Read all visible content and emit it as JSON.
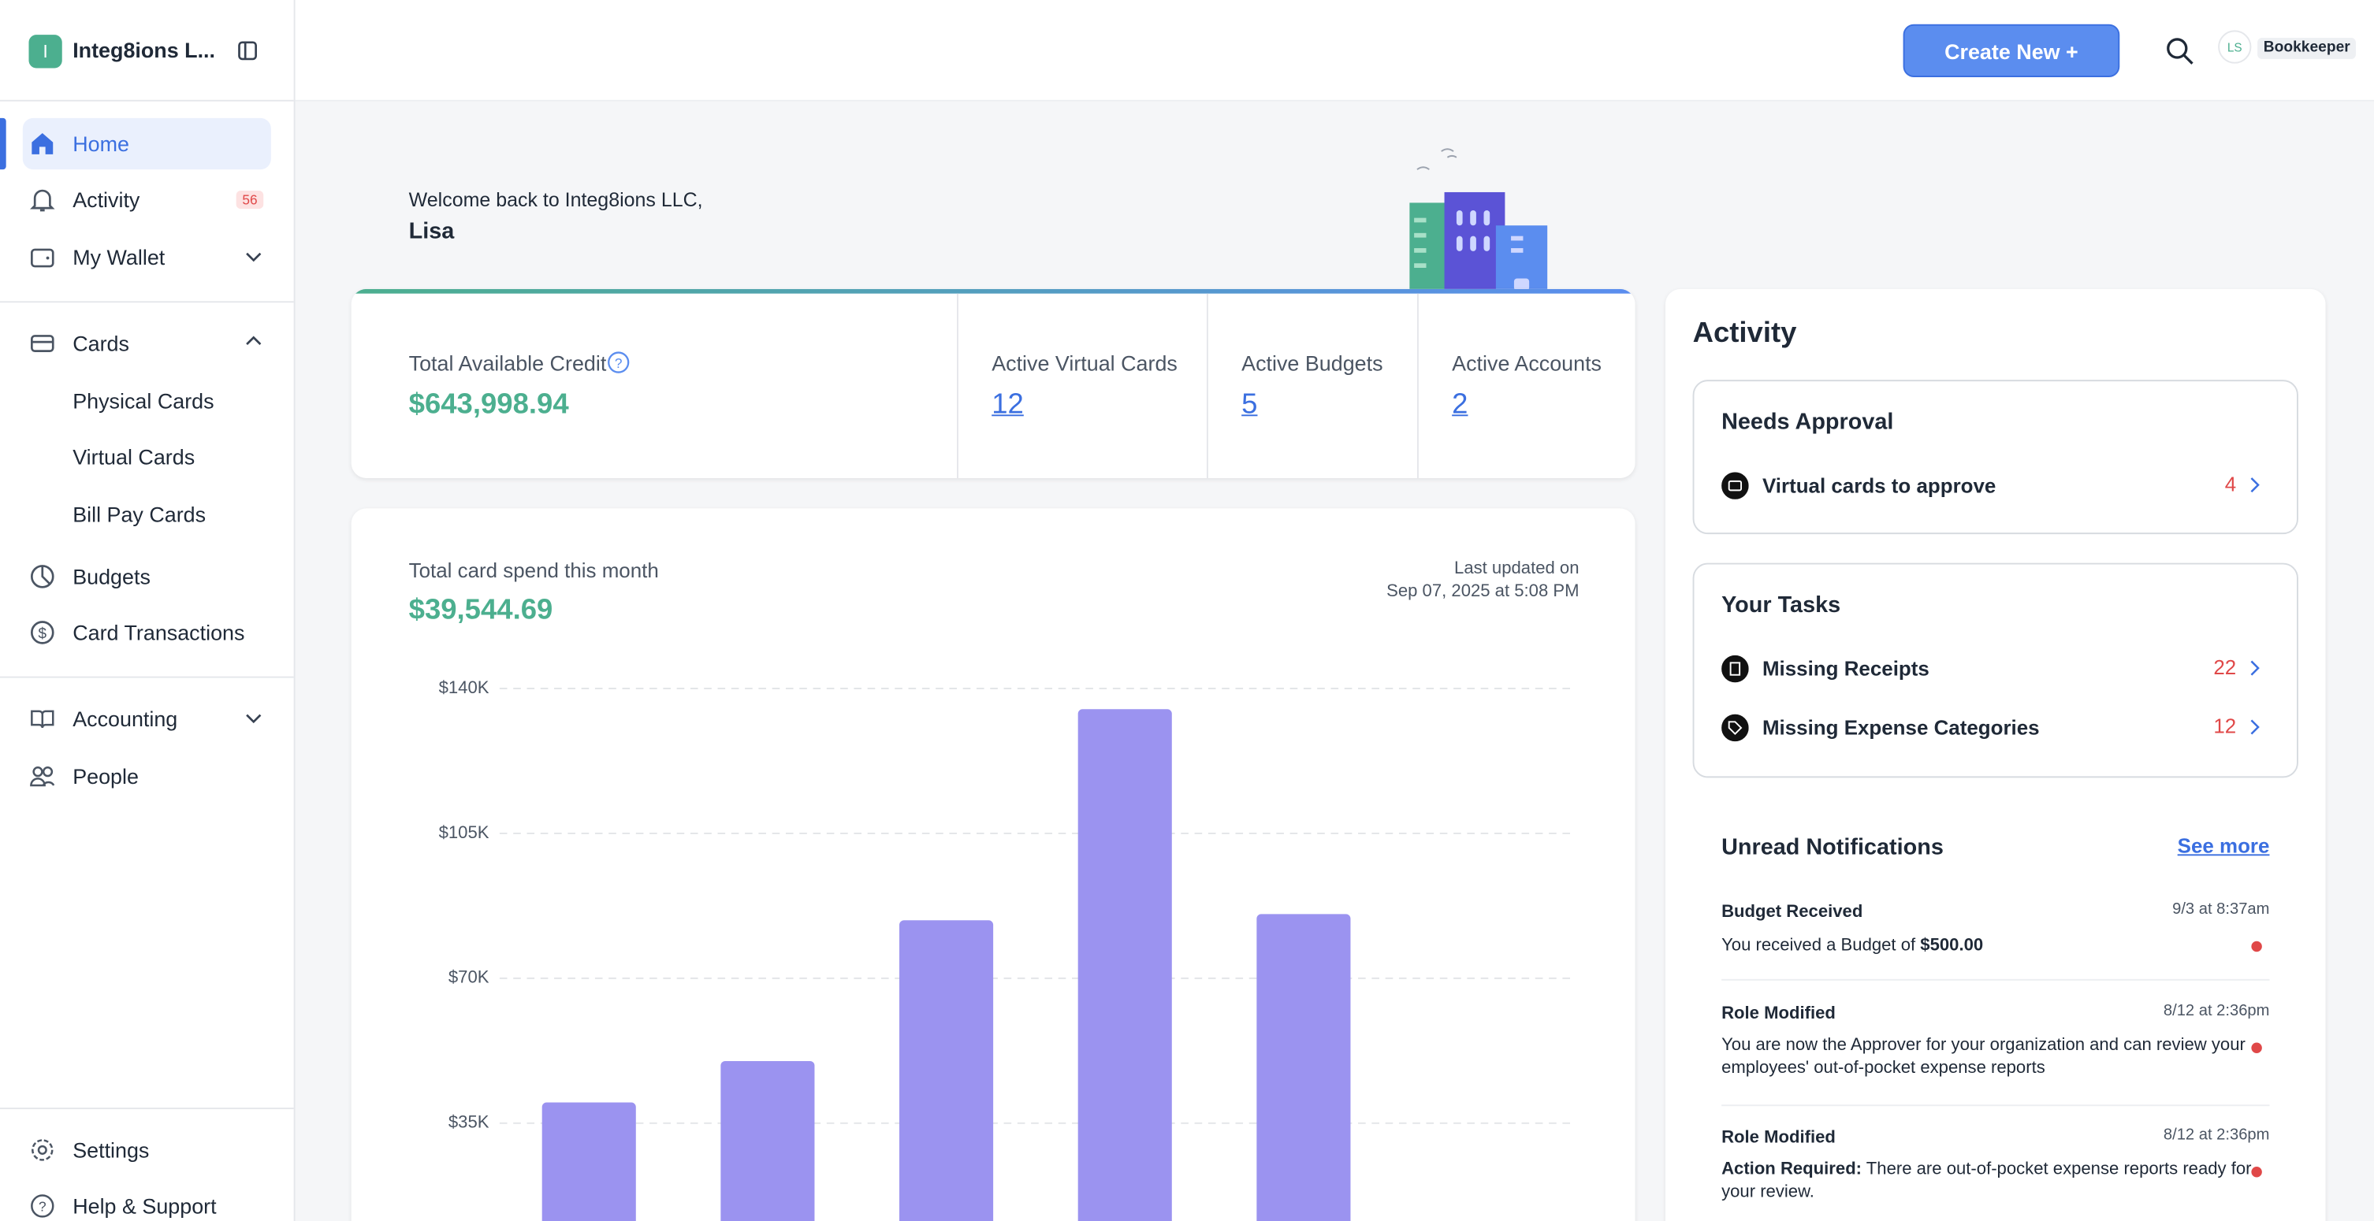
{
  "sidebar": {
    "company_initial": "I",
    "company": "Integ8ions L...",
    "nav": {
      "home": "Home",
      "activity": "Activity",
      "activity_badge": 56,
      "wallet": "My Wallet",
      "cards": "Cards",
      "physical_cards": "Physical Cards",
      "virtual_cards": "Virtual Cards",
      "bill_pay_cards": "Bill Pay Cards",
      "budgets": "Budgets",
      "card_transactions": "Card Transactions",
      "accounting": "Accounting",
      "people": "People",
      "settings": "Settings",
      "help": "Help & Support"
    }
  },
  "header": {
    "create_button": "Create New +",
    "user_initials": "LS",
    "role": "Bookkeeper"
  },
  "welcome": {
    "line": "Welcome back to Integ8ions LLC,",
    "name": "Lisa"
  },
  "stats": {
    "credit_label": "Total Available Credit",
    "credit_value": "$643,998.94",
    "items": [
      {
        "label": "Active Virtual Cards",
        "value": 12
      },
      {
        "label": "Active Budgets",
        "value": 5
      },
      {
        "label": "Active Accounts",
        "value": 2
      }
    ]
  },
  "spend_chart": {
    "type": "bar",
    "title": "Total card spend this month",
    "total": "$39,544.69",
    "updated_label": "Last updated on",
    "updated_at": "Sep 07, 2025 at 5:08 PM",
    "color": "#9b93f0",
    "values": [
      40000,
      50000,
      84000,
      135000,
      85500
    ],
    "ylim": [
      0,
      140000
    ],
    "yticks": [
      {
        "value": 35000,
        "label": "$35K"
      },
      {
        "value": 70000,
        "label": "$70K"
      },
      {
        "value": 105000,
        "label": "$105K"
      },
      {
        "value": 140000,
        "label": "$140K"
      }
    ],
    "grid": true
  },
  "activity": {
    "title": "Activity",
    "needs_approval": {
      "title": "Needs Approval",
      "items": [
        {
          "label": "Virtual cards to approve",
          "count": 4
        }
      ]
    },
    "tasks": {
      "title": "Your Tasks",
      "items": [
        {
          "label": "Missing Receipts",
          "count": 22
        },
        {
          "label": "Missing Expense Categories",
          "count": 12
        }
      ]
    },
    "notifications": {
      "title": "Unread Notifications",
      "see_more": "See more",
      "items": [
        {
          "title": "Budget Received",
          "time": "9/3 at 8:37am",
          "text": "You received a Budget of",
          "amount": "$500.00"
        },
        {
          "title": "Role Modified",
          "time": "8/12 at 2:36pm",
          "text": "You are now the Approver for your organization and can review your employees' out-of-pocket expense reports"
        },
        {
          "title": "Role Modified",
          "time": "8/12 at 2:36pm",
          "label": "Action Required:",
          "text": "There are out-of-pocket expense reports ready for your review."
        }
      ]
    }
  }
}
